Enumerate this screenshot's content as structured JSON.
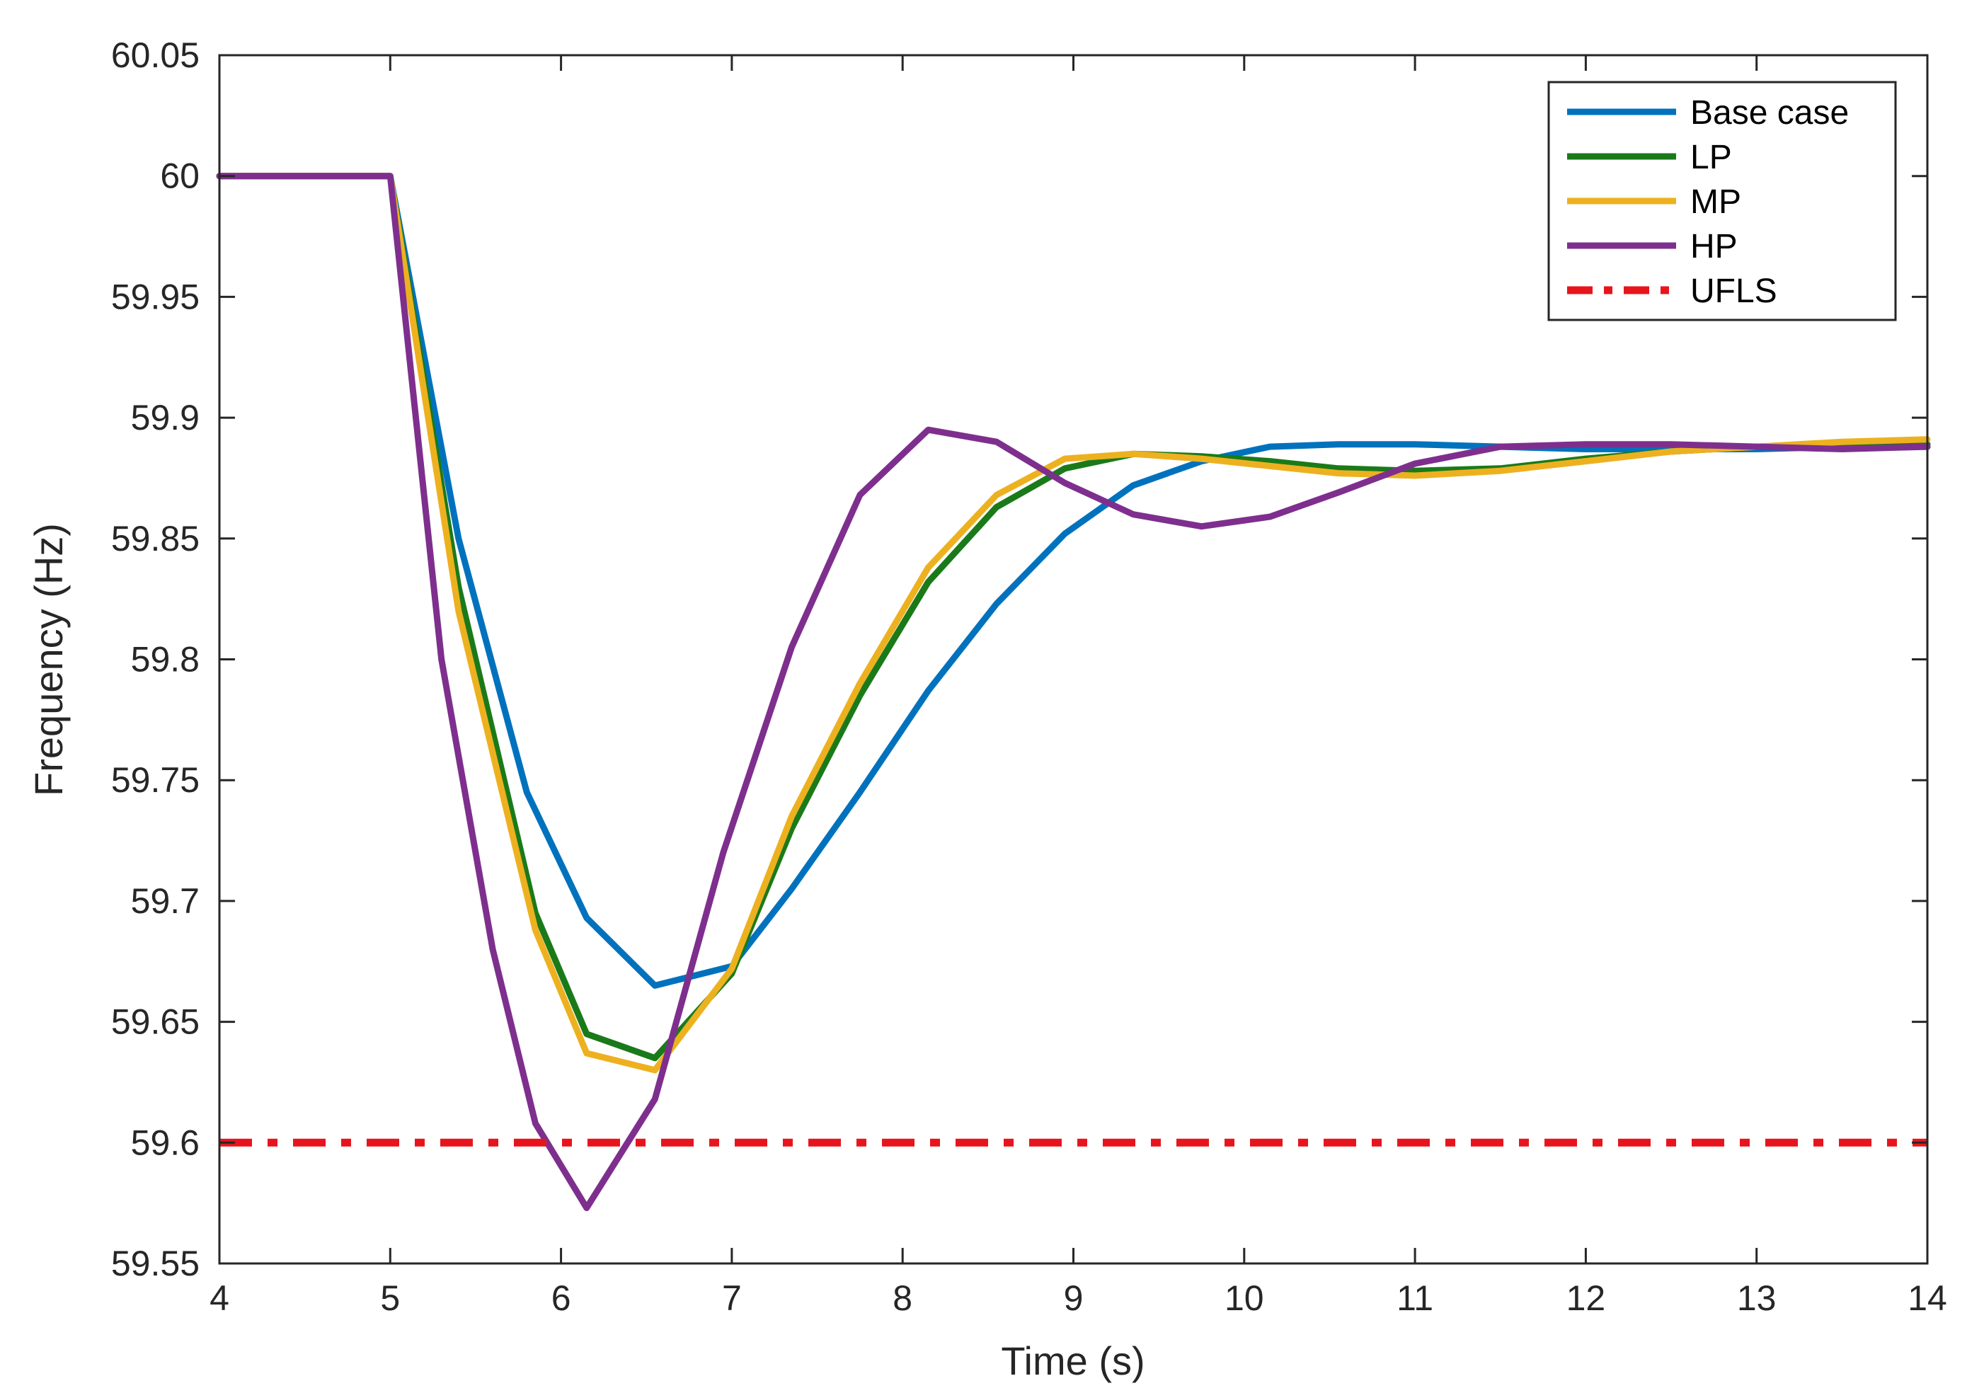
{
  "chart_data": {
    "type": "line",
    "title": "",
    "xlabel": "Time (s)",
    "ylabel": "Frequency (Hz)",
    "xlim": [
      4,
      14
    ],
    "ylim": [
      59.55,
      60.05
    ],
    "xticks": [
      "4",
      "5",
      "6",
      "7",
      "8",
      "9",
      "10",
      "11",
      "12",
      "13",
      "14"
    ],
    "yticks": [
      "59.55",
      "59.6",
      "59.65",
      "59.7",
      "59.75",
      "59.8",
      "59.85",
      "59.9",
      "59.95",
      "60",
      "60.05"
    ],
    "grid": false,
    "legend_position": "top-right",
    "series": [
      {
        "name": "Base case",
        "color": "#0072BD",
        "dash": "solid",
        "x": [
          4,
          5,
          5.4,
          5.8,
          6.15,
          6.55,
          7.0,
          7.35,
          7.75,
          8.15,
          8.55,
          8.95,
          9.35,
          9.75,
          10.15,
          10.55,
          11.0,
          11.5,
          12.0,
          12.5,
          13.0,
          13.5,
          14
        ],
        "y": [
          60,
          60,
          59.85,
          59.745,
          59.693,
          59.665,
          59.673,
          59.705,
          59.745,
          59.787,
          59.823,
          59.852,
          59.872,
          59.882,
          59.888,
          59.889,
          59.889,
          59.888,
          59.887,
          59.887,
          59.887,
          59.888,
          59.888
        ]
      },
      {
        "name": "LP",
        "color": "#1A7A1A",
        "dash": "solid",
        "x": [
          4,
          5,
          5.4,
          5.85,
          6.15,
          6.55,
          7.0,
          7.35,
          7.75,
          8.15,
          8.55,
          8.95,
          9.35,
          9.75,
          10.15,
          10.55,
          11.0,
          11.5,
          12.0,
          12.5,
          13.0,
          13.5,
          14
        ],
        "y": [
          60,
          60,
          59.83,
          59.695,
          59.645,
          59.635,
          59.67,
          59.73,
          59.785,
          59.832,
          59.863,
          59.879,
          59.885,
          59.884,
          59.882,
          59.879,
          59.878,
          59.879,
          59.883,
          59.886,
          59.888,
          59.889,
          59.889
        ]
      },
      {
        "name": "MP",
        "color": "#EDB120",
        "dash": "solid",
        "x": [
          4,
          5,
          5.4,
          5.85,
          6.15,
          6.55,
          7.0,
          7.35,
          7.75,
          8.15,
          8.55,
          8.95,
          9.35,
          9.75,
          10.15,
          10.55,
          11.0,
          11.5,
          12.0,
          12.5,
          13.0,
          13.5,
          14
        ],
        "y": [
          60,
          60,
          59.82,
          59.688,
          59.637,
          59.63,
          59.672,
          59.735,
          59.79,
          59.838,
          59.868,
          59.883,
          59.885,
          59.883,
          59.88,
          59.877,
          59.876,
          59.878,
          59.882,
          59.886,
          59.888,
          59.89,
          59.891
        ]
      },
      {
        "name": "HP",
        "color": "#7E2F8E",
        "dash": "solid",
        "x": [
          4,
          5,
          5.3,
          5.6,
          5.85,
          6.15,
          6.55,
          6.95,
          7.35,
          7.75,
          8.15,
          8.55,
          8.95,
          9.35,
          9.75,
          10.15,
          10.55,
          11.0,
          11.5,
          12.0,
          12.5,
          13.0,
          13.5,
          14
        ],
        "y": [
          60,
          60,
          59.8,
          59.68,
          59.608,
          59.573,
          59.618,
          59.72,
          59.805,
          59.868,
          59.895,
          59.89,
          59.873,
          59.86,
          59.855,
          59.859,
          59.869,
          59.881,
          59.888,
          59.889,
          59.889,
          59.888,
          59.887,
          59.888
        ]
      },
      {
        "name": "UFLS",
        "color": "#E8141C",
        "dash": "dashdot",
        "x": [
          4,
          14
        ],
        "y": [
          59.6,
          59.6
        ]
      }
    ]
  }
}
